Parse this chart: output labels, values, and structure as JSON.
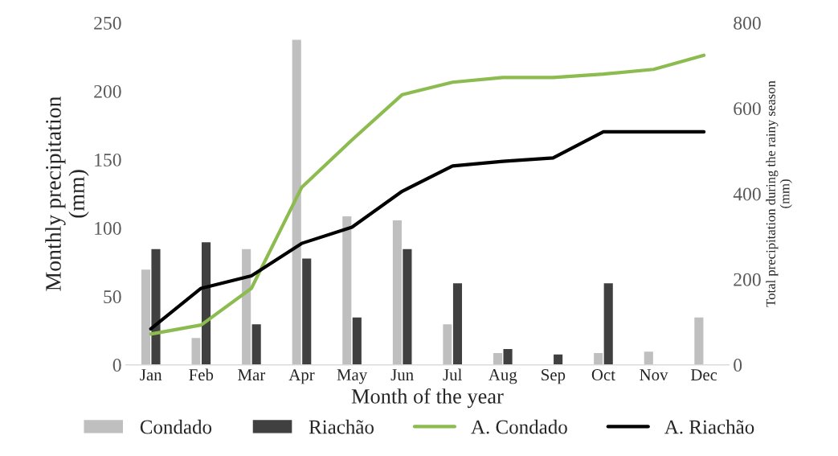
{
  "chart_data": {
    "type": "bar",
    "xlabel": "Month of the year",
    "ylabel": "Monthly precipitation\n(mm)",
    "y2label": "Total precipitation during the rainy season\n(mm)",
    "categories": [
      "Jan",
      "Feb",
      "Mar",
      "Apr",
      "May",
      "Jun",
      "Jul",
      "Aug",
      "Sep",
      "Oct",
      "Nov",
      "Dec"
    ],
    "series": [
      {
        "name": "Condado",
        "color": "#bfbfbf",
        "values": [
          70,
          20,
          85,
          238,
          109,
          106,
          30,
          9,
          null,
          9,
          10,
          35
        ]
      },
      {
        "name": "Riachão",
        "color": "#404040",
        "values": [
          85,
          90,
          30,
          78,
          35,
          85,
          60,
          12,
          8,
          60,
          null,
          null
        ]
      },
      {
        "name": "A. Condado",
        "type": "line",
        "axis": "y2",
        "color": "#8cbb4f",
        "values": [
          72,
          93,
          179,
          415,
          526,
          632,
          661,
          672,
          672,
          680,
          691,
          724
        ]
      },
      {
        "name": "A. Riachão",
        "type": "line",
        "axis": "y2",
        "color": "#000000",
        "values": [
          84,
          179,
          208,
          284,
          322,
          406,
          465,
          476,
          484,
          545,
          545,
          545
        ]
      }
    ],
    "ylim": [
      0,
      250
    ],
    "yticks": [
      0,
      50,
      100,
      150,
      200,
      250
    ],
    "y2lim": [
      0,
      800
    ],
    "y2ticks": [
      0,
      200,
      400,
      600,
      800
    ],
    "grid": false,
    "legend": "bottom",
    "marker": "none",
    "line_style": "solid"
  }
}
